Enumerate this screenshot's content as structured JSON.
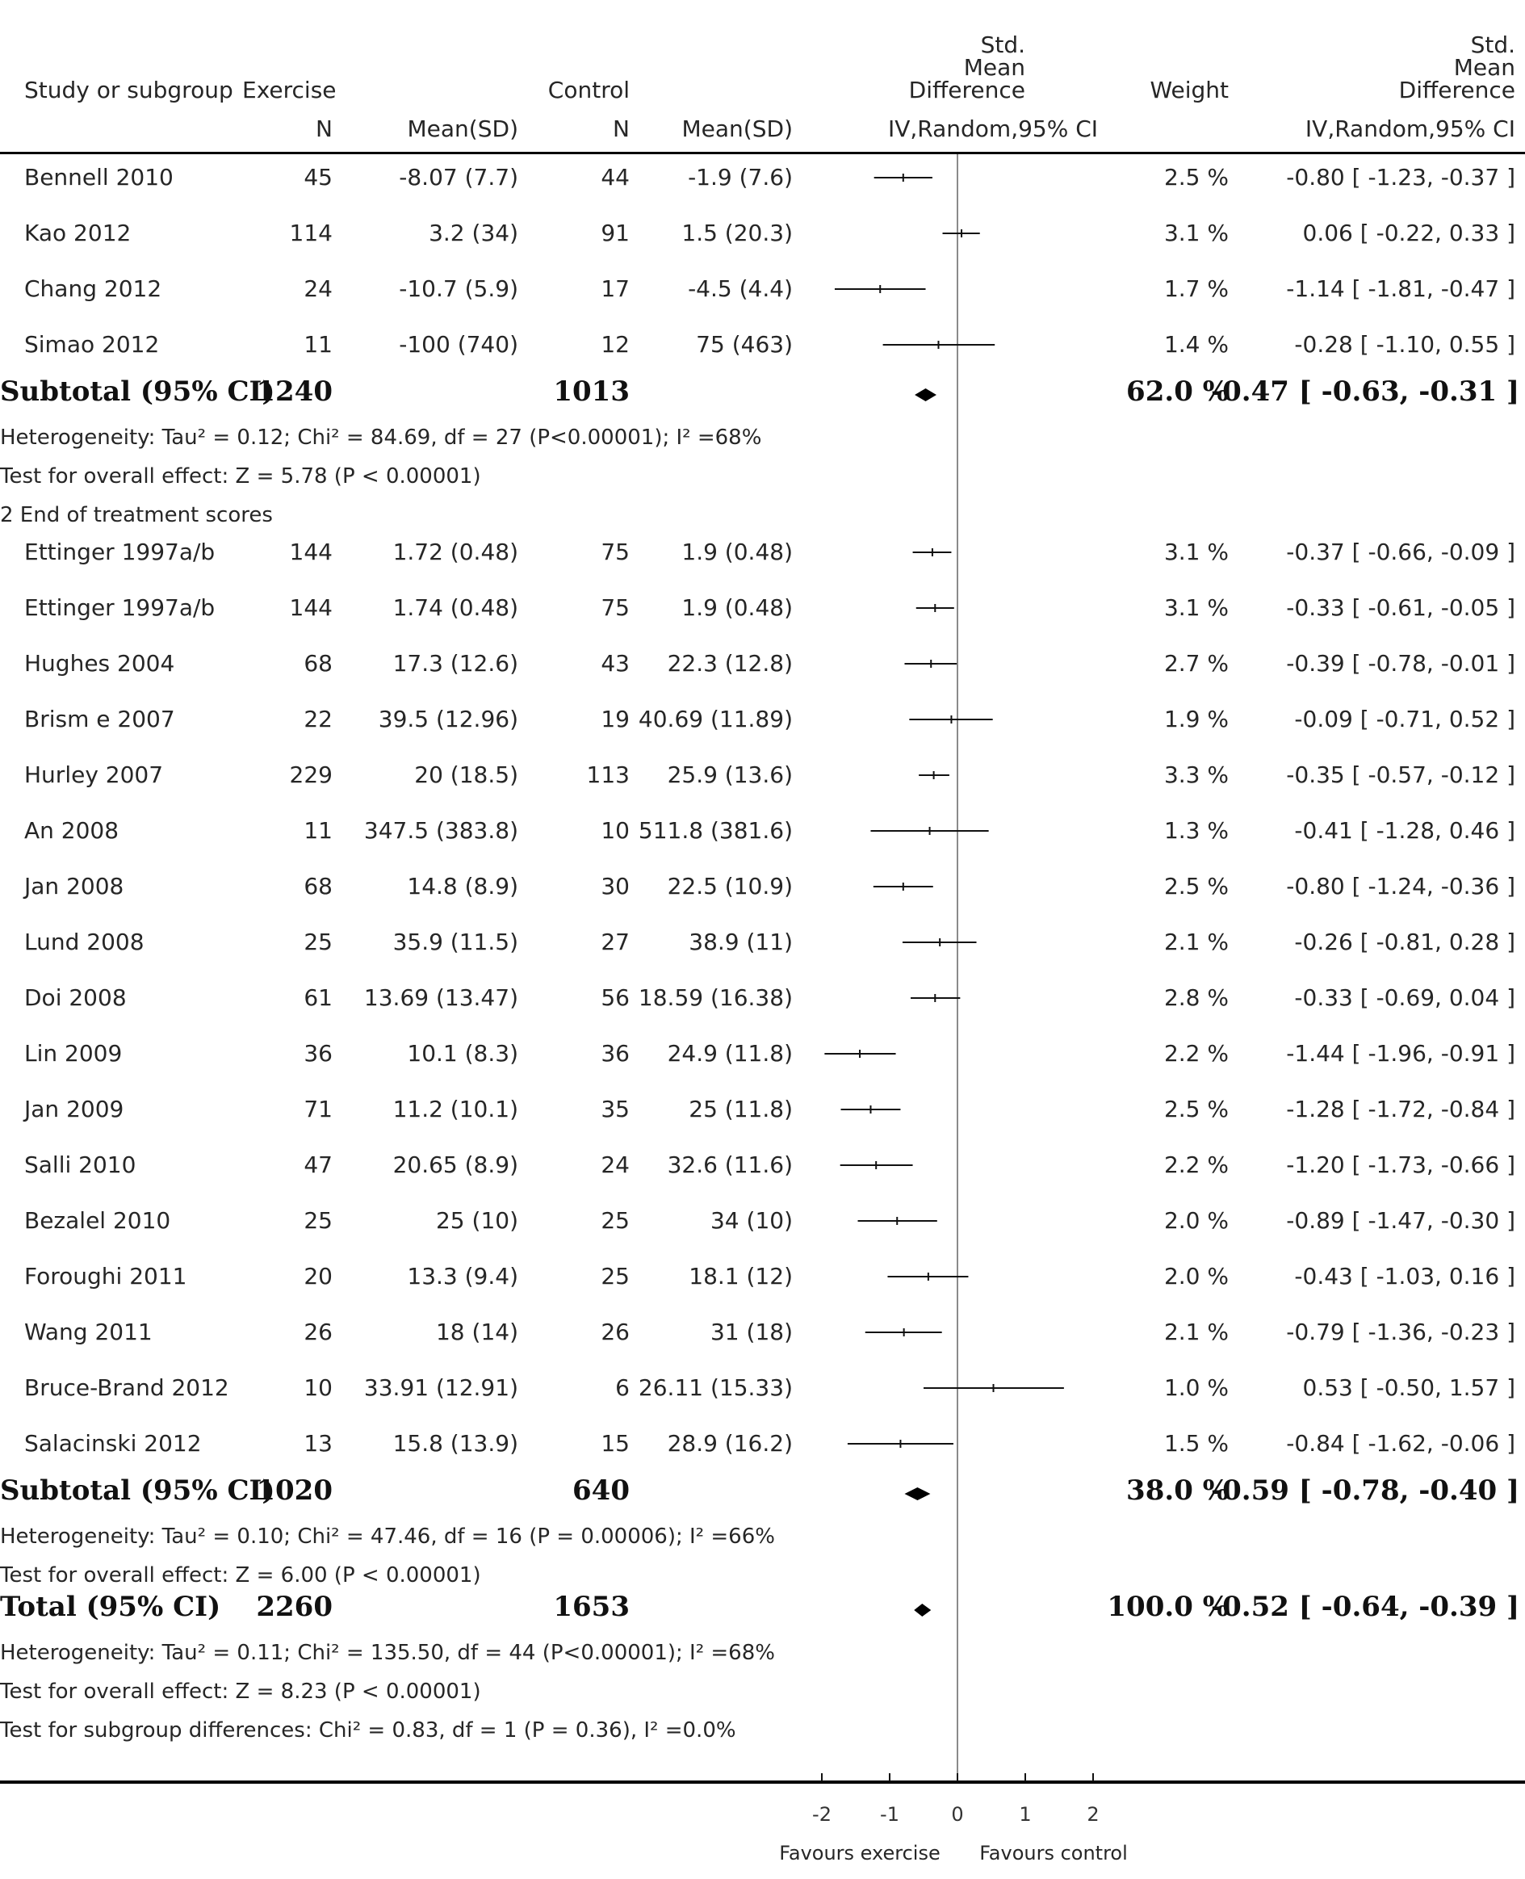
{
  "header": {
    "study_label": "Study or subgroup",
    "exercise_label": "Exercise",
    "control_label": "Control",
    "n_label": "N",
    "mean_sd_label": "Mean(SD)",
    "smd_plot_title": [
      "Std.",
      "Mean",
      "Difference"
    ],
    "smd_plot_method": "IV,Random,95% CI",
    "weight_label": "Weight",
    "smd_col_title": [
      "Std.",
      "Mean",
      "Difference"
    ],
    "smd_col_method": "IV,Random,95% CI"
  },
  "rows": [
    {
      "type": "study",
      "name": "Bennell 2010",
      "ex_n": "45",
      "ex_msd": "-8.07 (7.7)",
      "ct_n": "44",
      "ct_msd": "-1.9 (7.6)",
      "weight": "2.5 %",
      "ci": "-0.80 [ -1.23, -0.37 ]"
    },
    {
      "type": "study",
      "name": "Kao 2012",
      "ex_n": "114",
      "ex_msd": "3.2 (34)",
      "ct_n": "91",
      "ct_msd": "1.5 (20.3)",
      "weight": "3.1 %",
      "ci": "0.06 [ -0.22, 0.33 ]"
    },
    {
      "type": "study",
      "name": "Chang 2012",
      "ex_n": "24",
      "ex_msd": "-10.7 (5.9)",
      "ct_n": "17",
      "ct_msd": "-4.5 (4.4)",
      "weight": "1.7 %",
      "ci": "-1.14 [ -1.81, -0.47 ]"
    },
    {
      "type": "study",
      "name": "Simao 2012",
      "ex_n": "11",
      "ex_msd": "-100 (740)",
      "ct_n": "12",
      "ct_msd": "75 (463)",
      "weight": "1.4 %",
      "ci": "-0.28 [ -1.10, 0.55 ]"
    },
    {
      "type": "subtotal",
      "name": "Subtotal (95% CI)",
      "ex_n": "1240",
      "ct_n": "1013",
      "weight": "62.0 %",
      "ci": "-0.47 [ -0.63, -0.31 ]"
    },
    {
      "type": "note",
      "text": "Heterogeneity: Tau² = 0.12; Chi² = 84.69, df = 27 (P<0.00001); I² =68%"
    },
    {
      "type": "note",
      "text": "Test for overall effect: Z = 5.78 (P < 0.00001)"
    },
    {
      "type": "note",
      "text": "2 End of treatment scores"
    },
    {
      "type": "study",
      "name": "Ettinger 1997a/b",
      "ex_n": "144",
      "ex_msd": "1.72 (0.48)",
      "ct_n": "75",
      "ct_msd": "1.9 (0.48)",
      "weight": "3.1 %",
      "ci": "-0.37 [ -0.66, -0.09 ]"
    },
    {
      "type": "study",
      "name": "Ettinger 1997a/b",
      "ex_n": "144",
      "ex_msd": "1.74 (0.48)",
      "ct_n": "75",
      "ct_msd": "1.9 (0.48)",
      "weight": "3.1 %",
      "ci": "-0.33 [ -0.61, -0.05 ]"
    },
    {
      "type": "study",
      "name": "Hughes 2004",
      "ex_n": "68",
      "ex_msd": "17.3 (12.6)",
      "ct_n": "43",
      "ct_msd": "22.3 (12.8)",
      "weight": "2.7 %",
      "ci": "-0.39 [ -0.78, -0.01 ]"
    },
    {
      "type": "study",
      "name": "Brism   e 2007",
      "ex_n": "22",
      "ex_msd": "39.5 (12.96)",
      "ct_n": "19",
      "ct_msd": "40.69 (11.89)",
      "weight": "1.9 %",
      "ci": "-0.09 [ -0.71, 0.52 ]"
    },
    {
      "type": "study",
      "name": "Hurley 2007",
      "ex_n": "229",
      "ex_msd": "20 (18.5)",
      "ct_n": "113",
      "ct_msd": "25.9 (13.6)",
      "weight": "3.3 %",
      "ci": "-0.35 [ -0.57, -0.12 ]"
    },
    {
      "type": "study",
      "name": "An 2008",
      "ex_n": "11",
      "ex_msd": "347.5 (383.8)",
      "ct_n": "10",
      "ct_msd": "511.8 (381.6)",
      "weight": "1.3 %",
      "ci": "-0.41 [ -1.28, 0.46 ]"
    },
    {
      "type": "study",
      "name": "Jan 2008",
      "ex_n": "68",
      "ex_msd": "14.8 (8.9)",
      "ct_n": "30",
      "ct_msd": "22.5 (10.9)",
      "weight": "2.5 %",
      "ci": "-0.80 [ -1.24, -0.36 ]"
    },
    {
      "type": "study",
      "name": "Lund 2008",
      "ex_n": "25",
      "ex_msd": "35.9 (11.5)",
      "ct_n": "27",
      "ct_msd": "38.9 (11)",
      "weight": "2.1 %",
      "ci": "-0.26 [ -0.81, 0.28 ]"
    },
    {
      "type": "study",
      "name": "Doi 2008",
      "ex_n": "61",
      "ex_msd": "13.69 (13.47)",
      "ct_n": "56",
      "ct_msd": "18.59 (16.38)",
      "weight": "2.8 %",
      "ci": "-0.33 [ -0.69, 0.04 ]"
    },
    {
      "type": "study",
      "name": "Lin 2009",
      "ex_n": "36",
      "ex_msd": "10.1 (8.3)",
      "ct_n": "36",
      "ct_msd": "24.9 (11.8)",
      "weight": "2.2 %",
      "ci": "-1.44 [ -1.96, -0.91 ]"
    },
    {
      "type": "study",
      "name": "Jan 2009",
      "ex_n": "71",
      "ex_msd": "11.2 (10.1)",
      "ct_n": "35",
      "ct_msd": "25 (11.8)",
      "weight": "2.5 %",
      "ci": "-1.28 [ -1.72, -0.84 ]"
    },
    {
      "type": "study",
      "name": "Salli 2010",
      "ex_n": "47",
      "ex_msd": "20.65 (8.9)",
      "ct_n": "24",
      "ct_msd": "32.6 (11.6)",
      "weight": "2.2 %",
      "ci": "-1.20 [ -1.73, -0.66 ]"
    },
    {
      "type": "study",
      "name": "Bezalel 2010",
      "ex_n": "25",
      "ex_msd": "25 (10)",
      "ct_n": "25",
      "ct_msd": "34 (10)",
      "weight": "2.0 %",
      "ci": "-0.89 [ -1.47, -0.30 ]"
    },
    {
      "type": "study",
      "name": "Foroughi 2011",
      "ex_n": "20",
      "ex_msd": "13.3 (9.4)",
      "ct_n": "25",
      "ct_msd": "18.1 (12)",
      "weight": "2.0 %",
      "ci": "-0.43 [ -1.03, 0.16 ]"
    },
    {
      "type": "study",
      "name": "Wang 2011",
      "ex_n": "26",
      "ex_msd": "18 (14)",
      "ct_n": "26",
      "ct_msd": "31 (18)",
      "weight": "2.1 %",
      "ci": "-0.79 [ -1.36, -0.23 ]"
    },
    {
      "type": "study",
      "name": "Bruce-Brand 2012",
      "ex_n": "10",
      "ex_msd": "33.91 (12.91)",
      "ct_n": "6",
      "ct_msd": "26.11 (15.33)",
      "weight": "1.0 %",
      "ci": "0.53 [ -0.50, 1.57 ]"
    },
    {
      "type": "study",
      "name": "Salacinski 2012",
      "ex_n": "13",
      "ex_msd": "15.8 (13.9)",
      "ct_n": "15",
      "ct_msd": "28.9 (16.2)",
      "weight": "1.5 %",
      "ci": "-0.84 [ -1.62, -0.06 ]"
    },
    {
      "type": "subtotal",
      "name": "Subtotal (95% CI)",
      "ex_n": "1020",
      "ct_n": "640",
      "weight": "38.0 %",
      "ci": "-0.59 [ -0.78, -0.40 ]"
    },
    {
      "type": "note",
      "text": "Heterogeneity: Tau² = 0.10; Chi² = 47.46, df = 16 (P = 0.00006); I² =66%"
    },
    {
      "type": "note",
      "text": "Test for overall effect: Z = 6.00 (P < 0.00001)"
    },
    {
      "type": "subtotal",
      "name": "Total (95% CI)",
      "ex_n": "2260",
      "ct_n": "1653",
      "weight": "100.0 %",
      "ci": "-0.52 [ -0.64, -0.39 ]"
    },
    {
      "type": "note",
      "text": "Heterogeneity: Tau² = 0.11; Chi² = 135.50, df = 44 (P<0.00001); I² =68%"
    },
    {
      "type": "note",
      "text": "Test for overall effect: Z = 8.23 (P < 0.00001)"
    },
    {
      "type": "note",
      "text": "Test for subgroup differences: Chi² = 0.83, df = 1 (P = 0.36), I² =0.0%"
    }
  ],
  "chart_data": {
    "type": "forest",
    "xlim": [
      -2,
      2
    ],
    "x_ticks": [
      "-2",
      "-1",
      "0",
      "1",
      "2"
    ],
    "reference_line": 0,
    "favours_left": "Favours exercise",
    "favours_right": "Favours control",
    "points": [
      {
        "row": 0,
        "est": -0.8,
        "lo": -1.23,
        "hi": -0.37,
        "kind": "study"
      },
      {
        "row": 1,
        "est": 0.06,
        "lo": -0.22,
        "hi": 0.33,
        "kind": "study"
      },
      {
        "row": 2,
        "est": -1.14,
        "lo": -1.81,
        "hi": -0.47,
        "kind": "study"
      },
      {
        "row": 3,
        "est": -0.28,
        "lo": -1.1,
        "hi": 0.55,
        "kind": "study"
      },
      {
        "row": 4,
        "est": -0.47,
        "lo": -0.63,
        "hi": -0.31,
        "kind": "diamond"
      },
      {
        "row": 8,
        "est": -0.37,
        "lo": -0.66,
        "hi": -0.09,
        "kind": "study"
      },
      {
        "row": 9,
        "est": -0.33,
        "lo": -0.61,
        "hi": -0.05,
        "kind": "study"
      },
      {
        "row": 10,
        "est": -0.39,
        "lo": -0.78,
        "hi": -0.01,
        "kind": "study"
      },
      {
        "row": 11,
        "est": -0.09,
        "lo": -0.71,
        "hi": 0.52,
        "kind": "study"
      },
      {
        "row": 12,
        "est": -0.35,
        "lo": -0.57,
        "hi": -0.12,
        "kind": "study"
      },
      {
        "row": 13,
        "est": -0.41,
        "lo": -1.28,
        "hi": 0.46,
        "kind": "study"
      },
      {
        "row": 14,
        "est": -0.8,
        "lo": -1.24,
        "hi": -0.36,
        "kind": "study"
      },
      {
        "row": 15,
        "est": -0.26,
        "lo": -0.81,
        "hi": 0.28,
        "kind": "study"
      },
      {
        "row": 16,
        "est": -0.33,
        "lo": -0.69,
        "hi": 0.04,
        "kind": "study"
      },
      {
        "row": 17,
        "est": -1.44,
        "lo": -1.96,
        "hi": -0.91,
        "kind": "study"
      },
      {
        "row": 18,
        "est": -1.28,
        "lo": -1.72,
        "hi": -0.84,
        "kind": "study"
      },
      {
        "row": 19,
        "est": -1.2,
        "lo": -1.73,
        "hi": -0.66,
        "kind": "study"
      },
      {
        "row": 20,
        "est": -0.89,
        "lo": -1.47,
        "hi": -0.3,
        "kind": "study"
      },
      {
        "row": 21,
        "est": -0.43,
        "lo": -1.03,
        "hi": 0.16,
        "kind": "study"
      },
      {
        "row": 22,
        "est": -0.79,
        "lo": -1.36,
        "hi": -0.23,
        "kind": "study"
      },
      {
        "row": 23,
        "est": 0.53,
        "lo": -0.5,
        "hi": 1.57,
        "kind": "study"
      },
      {
        "row": 24,
        "est": -0.84,
        "lo": -1.62,
        "hi": -0.06,
        "kind": "study"
      },
      {
        "row": 25,
        "est": -0.59,
        "lo": -0.78,
        "hi": -0.4,
        "kind": "diamond"
      },
      {
        "row": 28,
        "est": -0.52,
        "lo": -0.64,
        "hi": -0.39,
        "kind": "diamond"
      }
    ]
  }
}
